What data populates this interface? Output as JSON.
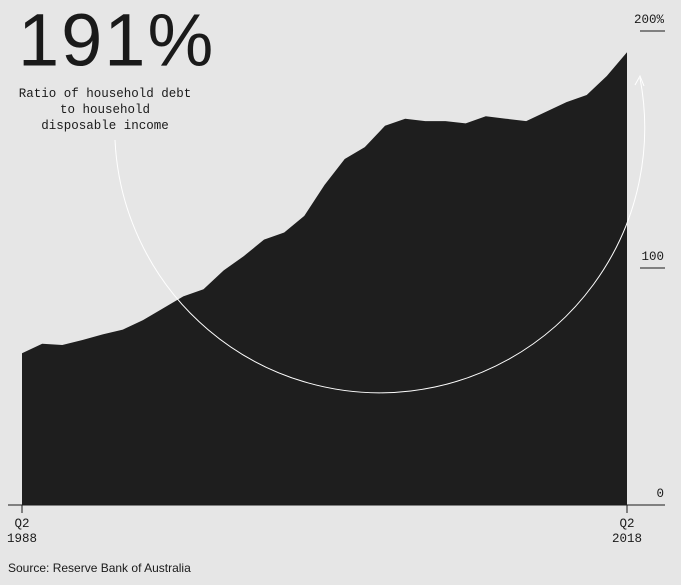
{
  "chart_data": {
    "type": "area",
    "title": "191%",
    "subtitle": [
      "Ratio of household debt",
      "to household",
      "disposable income"
    ],
    "source": "Source: Reserve Bank of Australia",
    "categories": [
      "Q2 1988",
      null,
      null,
      null,
      null,
      null,
      null,
      null,
      null,
      null,
      null,
      null,
      null,
      null,
      null,
      null,
      null,
      null,
      null,
      null,
      null,
      null,
      null,
      null,
      null,
      null,
      null,
      null,
      null,
      null,
      "Q2 2018"
    ],
    "values": [
      64,
      68,
      67.5,
      69.6,
      72,
      74,
      78,
      83,
      88,
      91,
      99,
      105,
      112,
      115,
      122,
      135,
      146,
      151,
      160,
      163,
      162,
      162,
      161,
      164,
      163,
      162,
      166,
      170,
      173,
      181,
      191
    ],
    "color": "#1e1e1e",
    "ylim": [
      0,
      200
    ],
    "yticks": [
      0,
      100,
      {
        "value": 200,
        "label": "200%"
      }
    ],
    "grid": false
  }
}
